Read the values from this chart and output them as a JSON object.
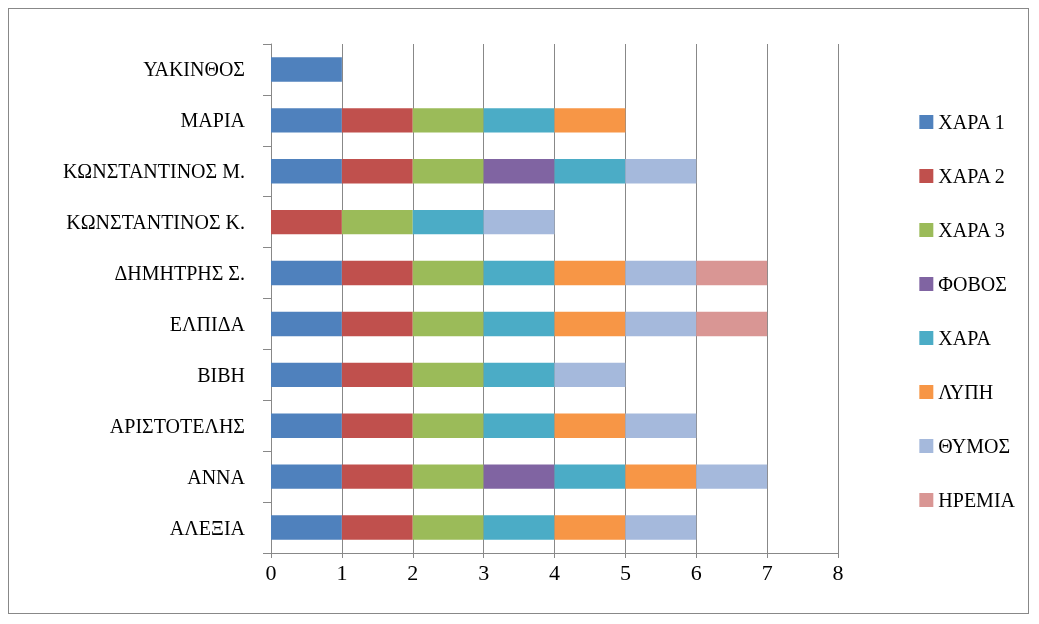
{
  "chart_data": {
    "type": "bar",
    "orientation": "horizontal",
    "stacked": true,
    "grid": "x",
    "legend": "right",
    "categories": [
      "ΥΑΚΙΝΘΟΣ",
      "ΜΑΡΙΑ",
      "ΚΩΝΣΤΑΝΤΙΝΟΣ Μ.",
      "ΚΩΝΣΤΑΝΤΙΝΟΣ Κ.",
      "ΔΗΜΗΤΡΗΣ Σ.",
      "ΕΛΠΙΔΑ",
      "ΒΙΒΗ",
      "ΑΡΙΣΤΟΤΕΛΗΣ",
      "ΑΝΝΑ",
      "ΑΛΕΞΙΑ"
    ],
    "xlim": [
      0,
      8
    ],
    "xticks": [
      0,
      1,
      2,
      3,
      4,
      5,
      6,
      7,
      8
    ],
    "series": [
      {
        "name": "ΧΑΡΑ 1",
        "color": "#4f81bd",
        "values": [
          1,
          1,
          1,
          0,
          1,
          1,
          1,
          1,
          1,
          1
        ]
      },
      {
        "name": "ΧΑΡΑ 2",
        "color": "#c0504d",
        "values": [
          0,
          1,
          1,
          1,
          1,
          1,
          1,
          1,
          1,
          1
        ]
      },
      {
        "name": "ΧΑΡΑ 3",
        "color": "#9bbb59",
        "values": [
          0,
          1,
          1,
          1,
          1,
          1,
          1,
          1,
          1,
          1
        ]
      },
      {
        "name": "ΦΟΒΟΣ",
        "color": "#8064a2",
        "values": [
          0,
          0,
          1,
          0,
          0,
          0,
          0,
          0,
          1,
          0
        ]
      },
      {
        "name": "ΧΑΡΑ",
        "color": "#4bacc6",
        "values": [
          0,
          1,
          1,
          1,
          1,
          1,
          1,
          1,
          1,
          1
        ]
      },
      {
        "name": "ΛΥΠΗ",
        "color": "#f79646",
        "values": [
          0,
          1,
          0,
          0,
          1,
          1,
          0,
          1,
          1,
          1
        ]
      },
      {
        "name": "ΘΥΜΟΣ",
        "color": "#a5b9dc",
        "values": [
          0,
          0,
          1,
          1,
          1,
          1,
          1,
          1,
          1,
          1
        ]
      },
      {
        "name": "ΗΡΕΜΙΑ",
        "color": "#d99694",
        "values": [
          0,
          0,
          0,
          0,
          1,
          1,
          0,
          0,
          0,
          0
        ]
      }
    ]
  }
}
